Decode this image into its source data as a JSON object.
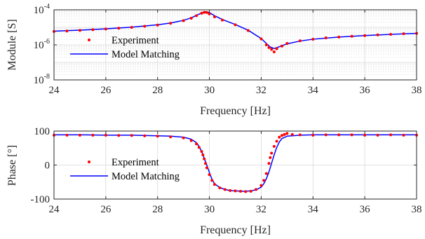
{
  "colors": {
    "experiment": "#ff0000",
    "model": "#0000ff",
    "grid": "#d9d9d9",
    "axes": "#262626"
  },
  "chart_data": [
    {
      "type": "scatter",
      "subplot": "magnitude",
      "xlabel": "Frequency [Hz]",
      "ylabel": "Module [S]",
      "xlim": [
        24,
        38
      ],
      "ylim": [
        1e-08,
        0.0001
      ],
      "yscale": "log",
      "grid": true,
      "minor_grid": true,
      "legend_position": "top-left",
      "x_ticks": [
        {
          "value": 24,
          "label": "24"
        },
        {
          "value": 26,
          "label": "26"
        },
        {
          "value": 28,
          "label": "28"
        },
        {
          "value": 30,
          "label": "30"
        },
        {
          "value": 32,
          "label": "32"
        },
        {
          "value": 34,
          "label": "34"
        },
        {
          "value": 36,
          "label": "36"
        },
        {
          "value": 38,
          "label": "38"
        }
      ],
      "y_ticks": [
        {
          "value": 1e-08,
          "base": "10",
          "exp": "-8"
        },
        {
          "value": 1e-06,
          "base": "10",
          "exp": "-6"
        },
        {
          "value": 0.0001,
          "base": "10",
          "exp": "-4"
        }
      ],
      "series": [
        {
          "name": "Experiment",
          "style": "markers",
          "x": [
            24.0,
            24.5,
            25.0,
            25.5,
            26.0,
            26.5,
            27.0,
            27.5,
            28.0,
            28.5,
            29.0,
            29.3,
            29.5,
            29.7,
            29.8,
            29.9,
            30.0,
            30.2,
            30.5,
            31.0,
            31.5,
            32.0,
            32.2,
            32.3,
            32.4,
            32.5,
            32.6,
            32.8,
            33.0,
            33.5,
            34.0,
            34.5,
            35.0,
            35.5,
            36.0,
            36.5,
            37.0,
            37.5,
            38.0
          ],
          "values": [
            5.8e-06,
            6.2e-06,
            6.7e-06,
            7.3e-06,
            8e-06,
            8.9e-06,
            1e-05,
            1.15e-05,
            1.35e-05,
            1.7e-05,
            2.4e-05,
            3.3e-05,
            4.6e-05,
            6.4e-05,
            7.2e-05,
            7e-05,
            5.8e-05,
            4e-05,
            2.6e-05,
            1.4e-05,
            6.5e-06,
            2.2e-06,
            1e-06,
            7e-07,
            5.5e-07,
            4e-07,
            6e-07,
            8.5e-07,
            1.2e-06,
            1.7e-06,
            2.1e-06,
            2.5e-06,
            2.8e-06,
            3.1e-06,
            3.4e-06,
            3.7e-06,
            4e-06,
            4.3e-06,
            4.5e-06
          ]
        },
        {
          "name": "Model Matching",
          "style": "line",
          "x": [
            24.0,
            25.0,
            26.0,
            27.0,
            28.0,
            28.5,
            29.0,
            29.3,
            29.5,
            29.7,
            29.85,
            30.0,
            30.2,
            30.5,
            31.0,
            31.5,
            32.0,
            32.2,
            32.35,
            32.5,
            32.7,
            33.0,
            33.5,
            34.0,
            35.0,
            36.0,
            37.0,
            38.0
          ],
          "values": [
            6e-06,
            6.9e-06,
            8.2e-06,
            1.02e-05,
            1.4e-05,
            1.75e-05,
            2.5e-05,
            3.5e-05,
            4.8e-05,
            6.6e-05,
            7.8e-05,
            7e-05,
            4.6e-05,
            2.8e-05,
            1.45e-05,
            6.8e-06,
            2.3e-06,
            1.2e-06,
            7.5e-07,
            6.2e-07,
            7.8e-07,
            1.15e-06,
            1.65e-06,
            2.1e-06,
            2.8e-06,
            3.4e-06,
            4e-06,
            4.5e-06
          ]
        }
      ]
    },
    {
      "type": "scatter",
      "subplot": "phase",
      "xlabel": "Frequency [Hz]",
      "ylabel": "Phase [°]",
      "xlim": [
        24,
        38
      ],
      "ylim": [
        -100,
        100
      ],
      "grid": true,
      "legend_position": "center-left",
      "x_ticks": [
        {
          "value": 24,
          "label": "24"
        },
        {
          "value": 26,
          "label": "26"
        },
        {
          "value": 28,
          "label": "28"
        },
        {
          "value": 30,
          "label": "30"
        },
        {
          "value": 32,
          "label": "32"
        },
        {
          "value": 34,
          "label": "34"
        },
        {
          "value": 36,
          "label": "36"
        },
        {
          "value": 38,
          "label": "38"
        }
      ],
      "y_ticks": [
        {
          "value": 100,
          "label": "100"
        },
        {
          "value": 0,
          "label": "0"
        },
        {
          "value": -100,
          "label": "-100"
        }
      ],
      "series": [
        {
          "name": "Experiment",
          "style": "markers",
          "x": [
            24.0,
            24.5,
            25.0,
            25.5,
            26.0,
            26.5,
            27.0,
            27.5,
            28.0,
            28.5,
            29.0,
            29.3,
            29.5,
            29.6,
            29.7,
            29.75,
            29.8,
            29.85,
            29.9,
            30.0,
            30.1,
            30.2,
            30.4,
            30.6,
            30.8,
            31.0,
            31.2,
            31.4,
            31.6,
            31.8,
            32.0,
            32.1,
            32.2,
            32.3,
            32.35,
            32.4,
            32.5,
            32.6,
            32.7,
            32.8,
            32.9,
            33.0,
            33.2,
            33.5,
            34.0,
            34.5,
            35.0,
            35.5,
            36.0,
            36.5,
            37.0,
            37.5,
            38.0
          ],
          "values": [
            88,
            88,
            88,
            88,
            88,
            87,
            87,
            86,
            85,
            83,
            80,
            72,
            62,
            52,
            40,
            30,
            18,
            5,
            -8,
            -28,
            -45,
            -57,
            -67,
            -72,
            -75,
            -76,
            -77,
            -78,
            -77,
            -72,
            -60,
            -45,
            -25,
            5,
            22,
            35,
            55,
            70,
            82,
            87,
            90,
            93,
            90,
            89,
            88,
            89,
            89,
            89,
            88,
            88,
            89,
            88,
            88
          ]
        },
        {
          "name": "Model Matching",
          "style": "line",
          "x": [
            24.0,
            25.0,
            26.0,
            27.0,
            28.0,
            28.5,
            29.0,
            29.3,
            29.5,
            29.6,
            29.7,
            29.8,
            29.9,
            30.0,
            30.1,
            30.2,
            30.4,
            30.6,
            30.8,
            31.0,
            31.3,
            31.6,
            31.8,
            32.0,
            32.1,
            32.2,
            32.3,
            32.4,
            32.5,
            32.6,
            32.7,
            32.8,
            33.0,
            33.5,
            34.0,
            35.0,
            36.0,
            37.0,
            38.0
          ],
          "values": [
            89,
            89,
            88,
            88,
            86,
            85,
            82,
            76,
            66,
            55,
            40,
            20,
            0,
            -22,
            -42,
            -55,
            -66,
            -72,
            -75,
            -76,
            -77,
            -76,
            -73,
            -65,
            -55,
            -40,
            -20,
            5,
            30,
            52,
            68,
            78,
            85,
            88,
            89,
            89,
            89,
            89,
            89
          ]
        }
      ]
    }
  ]
}
